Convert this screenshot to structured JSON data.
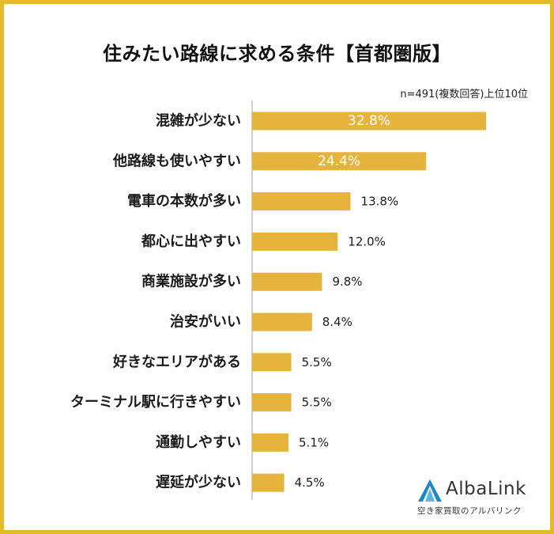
{
  "title": "住みたい路線に求める条件【首都圏版】",
  "note": "n=491(複数回答)上位10位",
  "logo": {
    "name": "AlbaLink",
    "tagline": "空き家買取のアルバリンク"
  },
  "colors": {
    "bar": "#e6b43d",
    "frame": "#e2bb2a",
    "axis": "#bdbdbd"
  },
  "chart_data": {
    "type": "bar",
    "orientation": "horizontal",
    "categories": [
      "混雑が少ない",
      "他路線も使いやすい",
      "電車の本数が多い",
      "都心に出やすい",
      "商業施設が多い",
      "治安がいい",
      "好きなエリアがある",
      "ターミナル駅に行きやすい",
      "通勤しやすい",
      "遅延が少ない"
    ],
    "values": [
      32.8,
      24.4,
      13.8,
      12.0,
      9.8,
      8.4,
      5.5,
      5.5,
      5.1,
      4.5
    ],
    "value_labels": [
      "32.8%",
      "24.4%",
      "13.8%",
      "12.0%",
      "9.8%",
      "8.4%",
      "5.5%",
      "5.5%",
      "5.1%",
      "4.5%"
    ],
    "unit": "%",
    "legend": "none",
    "grid": false
  }
}
